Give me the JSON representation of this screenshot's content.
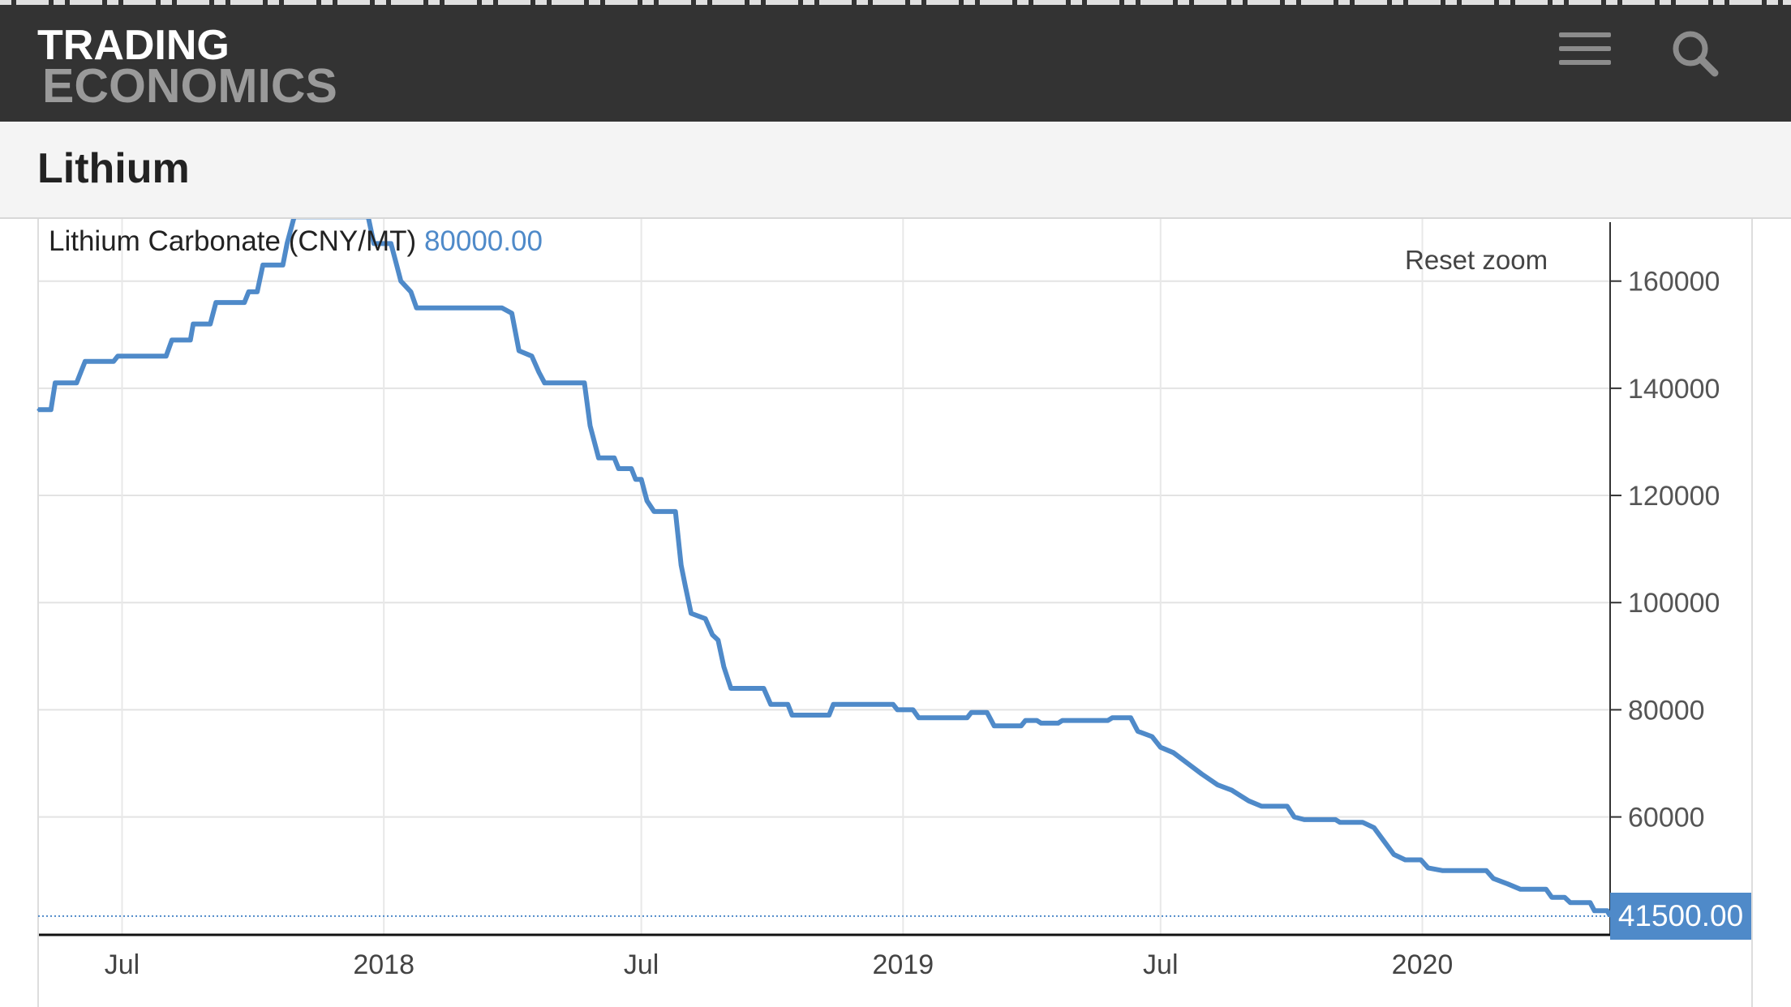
{
  "header": {
    "logo_line1": "TRADING",
    "logo_line2": "ECONOMICS",
    "menu_icon": "hamburger-menu-icon",
    "search_icon": "search-icon",
    "bg_color": "#333333"
  },
  "page": {
    "title": "Lithium"
  },
  "chart_controls": {
    "reset_zoom_label": "Reset zoom"
  },
  "chart_data": {
    "type": "line",
    "title": "Lithium Carbonate (CNY/MT)",
    "hover_value": "80000.00",
    "last_value_label": "41500.00",
    "line_color": "#4f8ac9",
    "grid": true,
    "y_axis_position": "right",
    "ylim": [
      38000,
      171000
    ],
    "y_ticks": [
      60000,
      80000,
      100000,
      120000,
      140000,
      160000
    ],
    "y_tick_labels": [
      "60000",
      "80000",
      "100000",
      "120000",
      "140000",
      "160000"
    ],
    "x_ticks": [
      {
        "date": "2017-07-01",
        "label": "Jul"
      },
      {
        "date": "2018-01-01",
        "label": "2018"
      },
      {
        "date": "2018-07-01",
        "label": "Jul"
      },
      {
        "date": "2019-01-01",
        "label": "2019"
      },
      {
        "date": "2019-07-01",
        "label": "Jul"
      },
      {
        "date": "2020-01-01",
        "label": "2020"
      }
    ],
    "xlim": [
      "2017-05-03",
      "2020-05-12"
    ],
    "series": [
      {
        "values": [
          [
            "2017-05-03",
            136000
          ],
          [
            "2017-05-12",
            136000
          ],
          [
            "2017-05-15",
            141000
          ],
          [
            "2017-05-30",
            141000
          ],
          [
            "2017-06-02",
            143000
          ],
          [
            "2017-06-05",
            145000
          ],
          [
            "2017-06-25",
            145000
          ],
          [
            "2017-06-28",
            146000
          ],
          [
            "2017-08-01",
            146000
          ],
          [
            "2017-08-05",
            149000
          ],
          [
            "2017-08-18",
            149000
          ],
          [
            "2017-08-20",
            152000
          ],
          [
            "2017-09-01",
            152000
          ],
          [
            "2017-09-05",
            156000
          ],
          [
            "2017-09-25",
            156000
          ],
          [
            "2017-09-28",
            158000
          ],
          [
            "2017-10-04",
            158000
          ],
          [
            "2017-10-08",
            163000
          ],
          [
            "2017-10-22",
            163000
          ],
          [
            "2017-10-25",
            167000
          ],
          [
            "2017-10-30",
            172000
          ],
          [
            "2017-12-21",
            172000
          ],
          [
            "2017-12-25",
            167000
          ],
          [
            "2018-01-06",
            167000
          ],
          [
            "2018-01-10",
            163000
          ],
          [
            "2018-01-13",
            160000
          ],
          [
            "2018-01-20",
            158000
          ],
          [
            "2018-01-24",
            155000
          ],
          [
            "2018-03-25",
            155000
          ],
          [
            "2018-04-01",
            154000
          ],
          [
            "2018-04-06",
            147000
          ],
          [
            "2018-04-15",
            146000
          ],
          [
            "2018-04-20",
            143000
          ],
          [
            "2018-04-24",
            141000
          ],
          [
            "2018-05-22",
            141000
          ],
          [
            "2018-05-26",
            133000
          ],
          [
            "2018-06-01",
            127000
          ],
          [
            "2018-06-12",
            127000
          ],
          [
            "2018-06-15",
            125000
          ],
          [
            "2018-06-24",
            125000
          ],
          [
            "2018-06-27",
            123000
          ],
          [
            "2018-07-01",
            123000
          ],
          [
            "2018-07-05",
            119000
          ],
          [
            "2018-07-10",
            117000
          ],
          [
            "2018-07-25",
            117000
          ],
          [
            "2018-07-29",
            107000
          ],
          [
            "2018-08-01",
            103000
          ],
          [
            "2018-08-05",
            98000
          ],
          [
            "2018-08-15",
            97000
          ],
          [
            "2018-08-20",
            94000
          ],
          [
            "2018-08-24",
            93000
          ],
          [
            "2018-08-28",
            88000
          ],
          [
            "2018-09-02",
            84000
          ],
          [
            "2018-09-25",
            84000
          ],
          [
            "2018-09-30",
            81000
          ],
          [
            "2018-10-12",
            81000
          ],
          [
            "2018-10-15",
            79000
          ],
          [
            "2018-11-10",
            79000
          ],
          [
            "2018-11-13",
            81000
          ],
          [
            "2018-12-25",
            81000
          ],
          [
            "2018-12-28",
            80000
          ],
          [
            "2019-01-08",
            80000
          ],
          [
            "2019-01-12",
            78500
          ],
          [
            "2019-02-15",
            78500
          ],
          [
            "2019-02-18",
            79500
          ],
          [
            "2019-03-01",
            79500
          ],
          [
            "2019-03-06",
            77000
          ],
          [
            "2019-03-25",
            77000
          ],
          [
            "2019-03-28",
            78000
          ],
          [
            "2019-04-05",
            78000
          ],
          [
            "2019-04-08",
            77500
          ],
          [
            "2019-04-20",
            77500
          ],
          [
            "2019-04-23",
            78000
          ],
          [
            "2019-05-25",
            78000
          ],
          [
            "2019-05-28",
            78500
          ],
          [
            "2019-06-10",
            78500
          ],
          [
            "2019-06-15",
            76000
          ],
          [
            "2019-06-25",
            75000
          ],
          [
            "2019-07-01",
            73000
          ],
          [
            "2019-07-10",
            72000
          ],
          [
            "2019-07-20",
            70000
          ],
          [
            "2019-07-30",
            68000
          ],
          [
            "2019-08-10",
            66000
          ],
          [
            "2019-08-20",
            65000
          ],
          [
            "2019-09-01",
            63000
          ],
          [
            "2019-09-10",
            62000
          ],
          [
            "2019-09-28",
            62000
          ],
          [
            "2019-10-03",
            60000
          ],
          [
            "2019-10-10",
            59500
          ],
          [
            "2019-11-01",
            59500
          ],
          [
            "2019-11-04",
            59000
          ],
          [
            "2019-11-20",
            59000
          ],
          [
            "2019-11-28",
            58000
          ],
          [
            "2019-12-05",
            55500
          ],
          [
            "2019-12-12",
            53000
          ],
          [
            "2019-12-20",
            52000
          ],
          [
            "2019-12-31",
            52000
          ],
          [
            "2020-01-05",
            50500
          ],
          [
            "2020-01-15",
            50000
          ],
          [
            "2020-02-15",
            50000
          ],
          [
            "2020-02-20",
            48500
          ],
          [
            "2020-03-01",
            47500
          ],
          [
            "2020-03-10",
            46500
          ],
          [
            "2020-03-28",
            46500
          ],
          [
            "2020-04-01",
            45000
          ],
          [
            "2020-04-10",
            45000
          ],
          [
            "2020-04-14",
            44000
          ],
          [
            "2020-04-28",
            44000
          ],
          [
            "2020-05-01",
            42500
          ],
          [
            "2020-05-10",
            42500
          ],
          [
            "2020-05-12",
            41500
          ]
        ]
      }
    ]
  }
}
